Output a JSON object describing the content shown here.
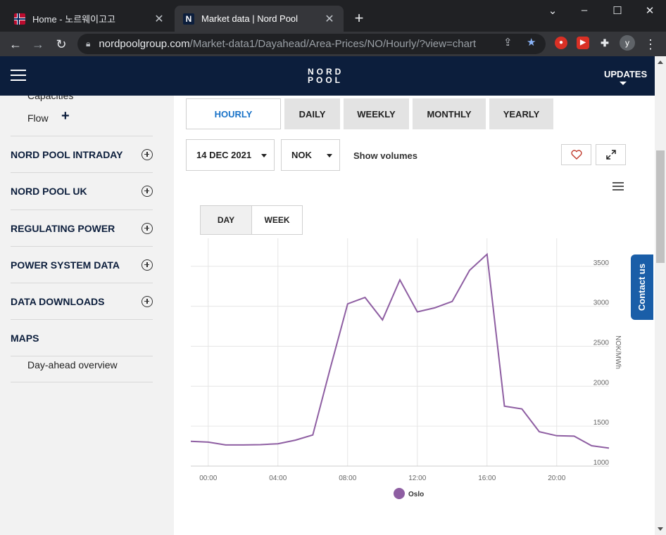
{
  "browser": {
    "tabs": [
      {
        "title": "Home - 노르웨이고고",
        "icon": "norway-flag-icon",
        "active": false
      },
      {
        "title": "Market data | Nord Pool",
        "icon": "nordpool-n-icon",
        "active": true
      }
    ],
    "new_tab": "+",
    "window_controls": {
      "minimize": "–",
      "maximize": "☐",
      "close": "✕",
      "collapse": "⌄"
    },
    "url": {
      "host": "nordpoolgroup.com",
      "path": "/Market-data1/Dayahead/Area-Prices/NO/Hourly/?view=chart"
    },
    "profile_initial": "y"
  },
  "header": {
    "logo_line1": "NORD",
    "logo_line2": "POOL",
    "updates_label": "UPDATES"
  },
  "sidebar": {
    "cut_label": "Capacities",
    "flow_label": "Flow",
    "sections": [
      {
        "label": "NORD POOL INTRADAY"
      },
      {
        "label": "NORD POOL UK"
      },
      {
        "label": "REGULATING POWER"
      },
      {
        "label": "POWER SYSTEM DATA"
      },
      {
        "label": "DATA DOWNLOADS"
      }
    ],
    "maps_label": "MAPS",
    "maps_sub": "Day-ahead overview"
  },
  "main": {
    "period_tabs": [
      "HOURLY",
      "DAILY",
      "WEEKLY",
      "MONTHLY",
      "YEARLY"
    ],
    "active_period": "HOURLY",
    "date_value": "14 DEC 2021",
    "currency_value": "NOK",
    "show_volumes_label": "Show volumes",
    "view_tabs": [
      "DAY",
      "WEEK"
    ],
    "active_view": "DAY",
    "contact_label": "Contact us"
  },
  "chart_data": {
    "type": "line",
    "title": "",
    "xlabel": "",
    "ylabel": "NOK/MWh",
    "x": [
      "23:00",
      "00:00",
      "01:00",
      "02:00",
      "03:00",
      "04:00",
      "05:00",
      "06:00",
      "07:00",
      "08:00",
      "09:00",
      "10:00",
      "11:00",
      "12:00",
      "13:00",
      "14:00",
      "15:00",
      "16:00",
      "17:00",
      "18:00",
      "19:00",
      "20:00",
      "21:00",
      "22:00",
      "23:00"
    ],
    "x_ticks": [
      "00:00",
      "04:00",
      "08:00",
      "12:00",
      "16:00",
      "20:00"
    ],
    "series": [
      {
        "name": "Oslo",
        "color": "#8e5ea2",
        "values": [
          1310,
          1300,
          1265,
          1265,
          1268,
          1280,
          1325,
          1390,
          2220,
          3030,
          3110,
          2830,
          3330,
          2930,
          2980,
          3060,
          3450,
          3650,
          1750,
          1715,
          1430,
          1380,
          1375,
          1255,
          1225
        ]
      }
    ],
    "y_ticks": [
      1000,
      1500,
      2000,
      2500,
      3000,
      3500
    ],
    "ylim": [
      1000,
      3850
    ],
    "grid": true,
    "legend": "bottom"
  }
}
